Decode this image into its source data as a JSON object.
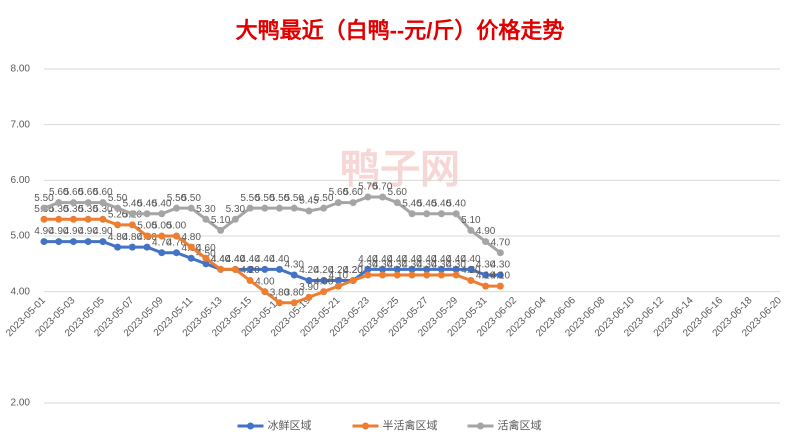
{
  "chart_data": {
    "type": "line",
    "title": "大鸭最近（白鸭--元/斤）价格走势",
    "watermark": "鸭子网",
    "categories": [
      "2023-05-01",
      null,
      "2023-05-03",
      null,
      "2023-05-05",
      null,
      "2023-05-07",
      null,
      "2023-05-09",
      null,
      "2023-05-11",
      null,
      "2023-05-13",
      null,
      "2023-05-15",
      null,
      "2023-05-17",
      null,
      "2023-05-19",
      null,
      "2023-05-21",
      null,
      "2023-05-23",
      null,
      "2023-05-25",
      null,
      "2023-05-27",
      null,
      "2023-05-29",
      null,
      "2023-05-31",
      null,
      "2023-06-02",
      null,
      "2023-06-04",
      null,
      "2023-06-06",
      null,
      "2023-06-08",
      null,
      "2023-06-10",
      null,
      "2023-06-12",
      null,
      "2023-06-14",
      null,
      "2023-06-16",
      null,
      "2023-06-18",
      null,
      "2023-06-20"
    ],
    "series": [
      {
        "name": "冰鲜区域",
        "color": "#4472c4",
        "values": [
          4.9,
          4.9,
          4.9,
          4.9,
          4.9,
          4.8,
          4.8,
          4.8,
          4.7,
          4.7,
          4.6,
          4.5,
          4.4,
          4.4,
          4.4,
          4.4,
          4.4,
          4.3,
          4.2,
          4.2,
          4.2,
          4.2,
          4.4,
          4.4,
          4.4,
          4.4,
          4.4,
          4.4,
          4.4,
          4.4,
          4.3,
          4.3,
          null,
          null,
          null,
          null,
          null,
          null,
          null,
          null,
          null,
          null,
          null,
          null,
          null,
          null,
          null,
          null,
          null,
          null,
          null
        ],
        "value_labels": [
          "4.90",
          "4.90",
          "4.90",
          "4.90",
          "4.90",
          "4.80",
          "4.80",
          "4.80",
          "4.70",
          "4.70",
          "4.60",
          "4.50",
          "4.40",
          "4.40",
          "4.40",
          "4.40",
          "4.40",
          "4.30",
          "4.20",
          "4.20",
          "4.20",
          "4.20",
          "4.40",
          "4.40",
          "4.40",
          "4.40",
          "4.40",
          "4.40",
          "4.40",
          "4.40",
          "4.30",
          "4.30",
          null,
          null,
          null,
          null,
          null,
          null,
          null,
          null,
          null,
          null,
          null,
          null,
          null,
          null,
          null,
          null,
          null,
          null,
          null
        ]
      },
      {
        "name": "半活禽区域",
        "color": "#ed7d31",
        "values": [
          5.3,
          5.3,
          5.3,
          5.3,
          5.3,
          5.2,
          5.2,
          5.0,
          5.0,
          5.0,
          4.8,
          4.6,
          4.4,
          4.4,
          4.2,
          4.0,
          3.8,
          3.8,
          3.9,
          4.0,
          4.1,
          4.2,
          4.3,
          4.3,
          4.3,
          4.3,
          4.3,
          4.3,
          4.3,
          4.2,
          4.1,
          4.1,
          null,
          null,
          null,
          null,
          null,
          null,
          null,
          null,
          null,
          null,
          null,
          null,
          null,
          null,
          null,
          null,
          null,
          null,
          null
        ],
        "value_labels": [
          "5.30",
          "5.30",
          "5.30",
          "5.30",
          "5.30",
          "5.20",
          "5.20",
          "5.00",
          "5.00",
          "5.00",
          "4.80",
          "4.60",
          "4.40",
          "4.40",
          "4.20",
          "4.00",
          "3.80",
          "3.80",
          "3.90",
          "4.00",
          "4.10",
          "4.20",
          "4.30",
          "4.30",
          "4.30",
          "4.30",
          "4.30",
          "4.30",
          "4.30",
          "4.20",
          "4.10",
          "4.10",
          null,
          null,
          null,
          null,
          null,
          null,
          null,
          null,
          null,
          null,
          null,
          null,
          null,
          null,
          null,
          null,
          null,
          null,
          null
        ]
      },
      {
        "name": "活禽区域",
        "color": "#a5a5a5",
        "values": [
          5.5,
          5.6,
          5.6,
          5.6,
          5.6,
          5.5,
          5.4,
          5.4,
          5.4,
          5.5,
          5.5,
          5.3,
          5.1,
          5.3,
          5.5,
          5.5,
          5.5,
          5.5,
          5.45,
          5.5,
          5.6,
          5.6,
          5.7,
          5.7,
          5.6,
          5.4,
          5.4,
          5.4,
          5.4,
          5.1,
          4.9,
          4.7,
          null,
          null,
          null,
          null,
          null,
          null,
          null,
          null,
          null,
          null,
          null,
          null,
          null,
          null,
          null,
          null,
          null,
          null,
          null
        ],
        "value_labels": [
          "5.50",
          "5.60",
          "5.60",
          "5.60",
          "5.60",
          "5.50",
          "5.40",
          "5.40",
          "5.40",
          "5.50",
          "5.50",
          "5.30",
          "5.10",
          "5.30",
          "5.50",
          "5.50",
          "5.50",
          "5.50",
          "5.45",
          "5.50",
          "5.60",
          "5.60",
          "5.70",
          "5.70",
          "5.60",
          "5.40",
          "5.40",
          "5.40",
          "5.40",
          "5.10",
          "4.90",
          "4.70",
          null,
          null,
          null,
          null,
          null,
          null,
          null,
          null,
          null,
          null,
          null,
          null,
          null,
          null,
          null,
          null,
          null,
          null,
          null
        ]
      }
    ],
    "ylim": [
      2,
      8
    ],
    "yticks": [
      {
        "value": 2,
        "label": "2.00"
      },
      {
        "value": 4,
        "label": "4.00"
      },
      {
        "value": 5,
        "label": "5.00"
      },
      {
        "value": 6,
        "label": "6.00"
      },
      {
        "value": 7,
        "label": "7.00"
      },
      {
        "value": 8,
        "label": "8.00"
      }
    ],
    "grid": true,
    "legend": "bottom"
  }
}
